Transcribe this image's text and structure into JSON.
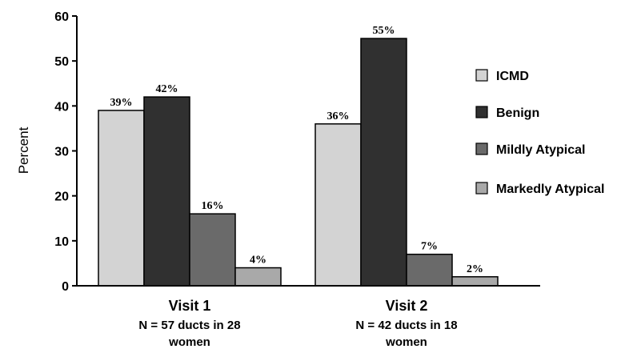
{
  "chart_data": {
    "type": "bar",
    "ylabel": "Percent",
    "ylim": [
      0,
      60
    ],
    "yticks": [
      0,
      10,
      20,
      30,
      40,
      50,
      60
    ],
    "grid": false,
    "legend_position": "right",
    "groups": [
      {
        "name": "Visit 1",
        "subtitle_lines": [
          "N = 57 ducts in 28",
          "women"
        ]
      },
      {
        "name": "Visit 2",
        "subtitle_lines": [
          "N = 42 ducts in 18",
          "women"
        ]
      }
    ],
    "series": [
      {
        "name": "ICMD",
        "color": "#d3d3d3",
        "values": [
          39,
          36
        ],
        "labels": [
          "39%",
          "36%"
        ]
      },
      {
        "name": "Benign",
        "color": "#303030",
        "values": [
          42,
          55
        ],
        "labels": [
          "42%",
          "55%"
        ]
      },
      {
        "name": "Mildly Atypical",
        "color": "#6a6a6a",
        "values": [
          16,
          7
        ],
        "labels": [
          "16%",
          "7%"
        ]
      },
      {
        "name": "Markedly Atypical",
        "color": "#a9a9a9",
        "values": [
          4,
          2
        ],
        "labels": [
          "4%",
          "2%"
        ]
      }
    ]
  }
}
